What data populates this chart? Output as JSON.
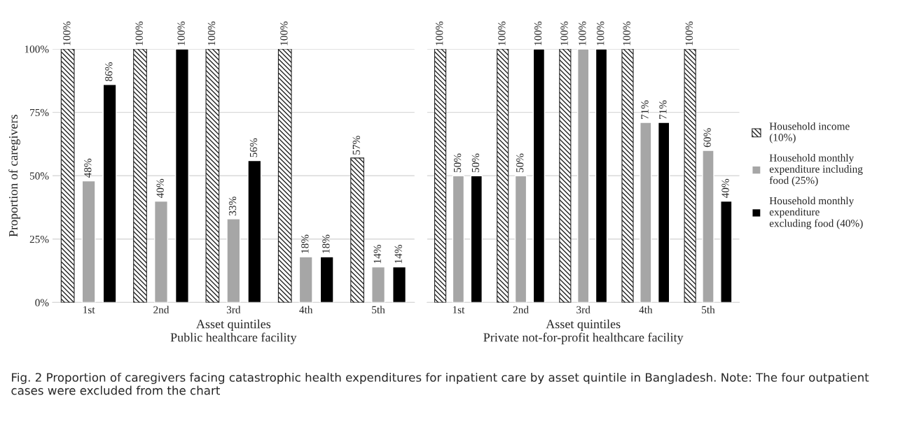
{
  "chart_data": [
    {
      "type": "bar",
      "xlabel": "Asset quintiles\nPublic healthcare facility",
      "ylabel": "Proportion of caregivers",
      "categories": [
        "1st",
        "2nd",
        "3rd",
        "4th",
        "5th"
      ],
      "ylim": [
        0,
        100
      ],
      "yticks": [
        {
          "value": 0,
          "label": "0%"
        },
        {
          "value": 25,
          "label": "25%"
        },
        {
          "value": 50,
          "label": "50%"
        },
        {
          "value": 75,
          "label": "75%"
        },
        {
          "value": 100,
          "label": "100%"
        }
      ],
      "grid": "y",
      "legend": false,
      "series": [
        {
          "color": "#222222",
          "values": [
            100,
            100,
            100,
            100,
            57
          ],
          "value_labels": [
            "100%",
            "100%",
            "100%",
            "100%",
            "57%"
          ]
        },
        {
          "color": "#a6a6a6",
          "values": [
            48,
            40,
            33,
            18,
            14
          ],
          "value_labels": [
            "48%",
            "40%",
            "33%",
            "18%",
            "14%"
          ]
        },
        {
          "color": "#000000",
          "values": [
            86,
            100,
            56,
            18,
            14
          ],
          "value_labels": [
            "86%",
            "100%",
            "56%",
            "18%",
            "14%"
          ]
        }
      ],
      "annotations": [
        "Fig. 2 Proportion of caregivers facing catastrophic health expenditures for inpatient care by asset quintile in Bangladesh. Note: The four outpatient cases were excluded from the chart"
      ]
    },
    {
      "type": "bar",
      "xlabel": "Asset quintiles\nPrivate not-for-profit healthcare facility",
      "categories": [
        "1st",
        "2nd",
        "3rd",
        "4th",
        "5th"
      ],
      "ylim": [
        0,
        100
      ],
      "tick_labels": "x",
      "grid": "y",
      "legend": "right",
      "series": [
        {
          "name": "Household income\n(10%)",
          "color": "#222222",
          "values": [
            100,
            100,
            100,
            100,
            100
          ],
          "value_labels": [
            "100%",
            "100%",
            "100%",
            "100%",
            "100%"
          ]
        },
        {
          "name": "Household monthly\nexpenditure including\nfood (25%)",
          "color": "#a6a6a6",
          "values": [
            50,
            50,
            100,
            71,
            60
          ],
          "value_labels": [
            "50%",
            "50%",
            "100%",
            "71%",
            "60%"
          ]
        },
        {
          "name": "Household monthly\nexpenditure\nexcluding food (40%)",
          "color": "#000000",
          "values": [
            50,
            100,
            100,
            71,
            40
          ],
          "value_labels": [
            "50%",
            "100%",
            "100%",
            "71%",
            "40%"
          ]
        }
      ]
    }
  ]
}
